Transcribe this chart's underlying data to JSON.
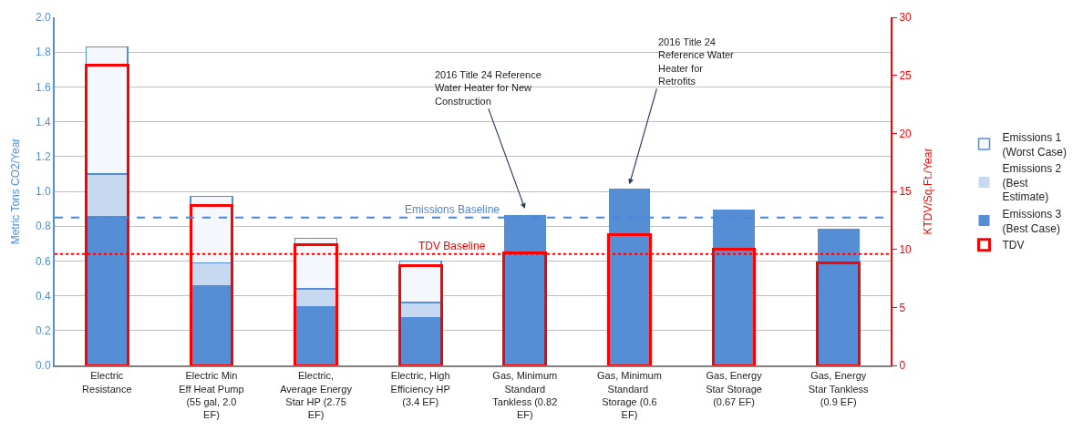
{
  "chart_data": {
    "type": "bar",
    "stacked": true,
    "categories": [
      "Electric Resistance",
      "Electric Min Eff Heat Pump (55 gal, 2.0 EF)",
      "Electric, Average Energy Star HP (2.75 EF)",
      "Electric, High Efficiency HP (3.4 EF)",
      "Gas, Minimum Standard Tankless (0.82 EF)",
      "Gas, Minimum Standard  Storage (0.6 EF)",
      "Gas, Energy Star Storage (0.67 EF)",
      "Gas, Energy Star Tankless (0.9 EF)"
    ],
    "series": [
      {
        "name": "Emissions 3 (Best Case)",
        "color": "#558ed5",
        "values": [
          0.86,
          0.46,
          0.34,
          0.28,
          0.86,
          1.01,
          0.89,
          0.78
        ]
      },
      {
        "name": "Emissions 2 (Best Estimate)",
        "color": "#c6d9f1",
        "values": [
          0.24,
          0.13,
          0.1,
          0.08,
          0,
          0,
          0,
          0
        ]
      },
      {
        "name": "Emissions 1 (Worst Case)",
        "color": "#558ed5",
        "values": [
          0.73,
          0.38,
          0.29,
          0.24,
          0,
          0,
          0,
          0
        ]
      },
      {
        "name": "TDV",
        "color": "#ff0000",
        "axis": "y2",
        "values": [
          25.9,
          13.8,
          10.4,
          8.6,
          9.7,
          11.3,
          10.0,
          8.8
        ]
      }
    ],
    "ylabel": "Metric Tons CO2/Year",
    "y2label": "KTDV/Sq.Ft./Year",
    "ylim": [
      0,
      2.0
    ],
    "yticks": [
      {
        "value": 0,
        "label": "0.0"
      },
      0.2,
      0.4,
      0.6,
      0.8,
      {
        "value": 1,
        "label": "1.0"
      },
      1.2,
      1.4,
      1.6,
      1.8,
      {
        "value": 2,
        "label": "2.0"
      }
    ],
    "y2lim": [
      0,
      30
    ],
    "y2ticks": [
      0,
      5,
      10,
      15,
      20,
      25,
      30
    ],
    "grid": "y",
    "legend": "right",
    "ref_lines": [
      {
        "axis": "y",
        "value": 0.85,
        "label": "Emissions Baseline",
        "color": "#4a86d8",
        "line_style": "dashed"
      },
      {
        "axis": "y2",
        "value": 9.6,
        "label": "TDV Baseline",
        "color": "#ff0000",
        "line_style": "dotted"
      }
    ],
    "annotations": [
      "2016 Title 24 Reference Water Heater for New Construction",
      "2016 Title 24 Reference Water Heater for Retrofits"
    ]
  }
}
